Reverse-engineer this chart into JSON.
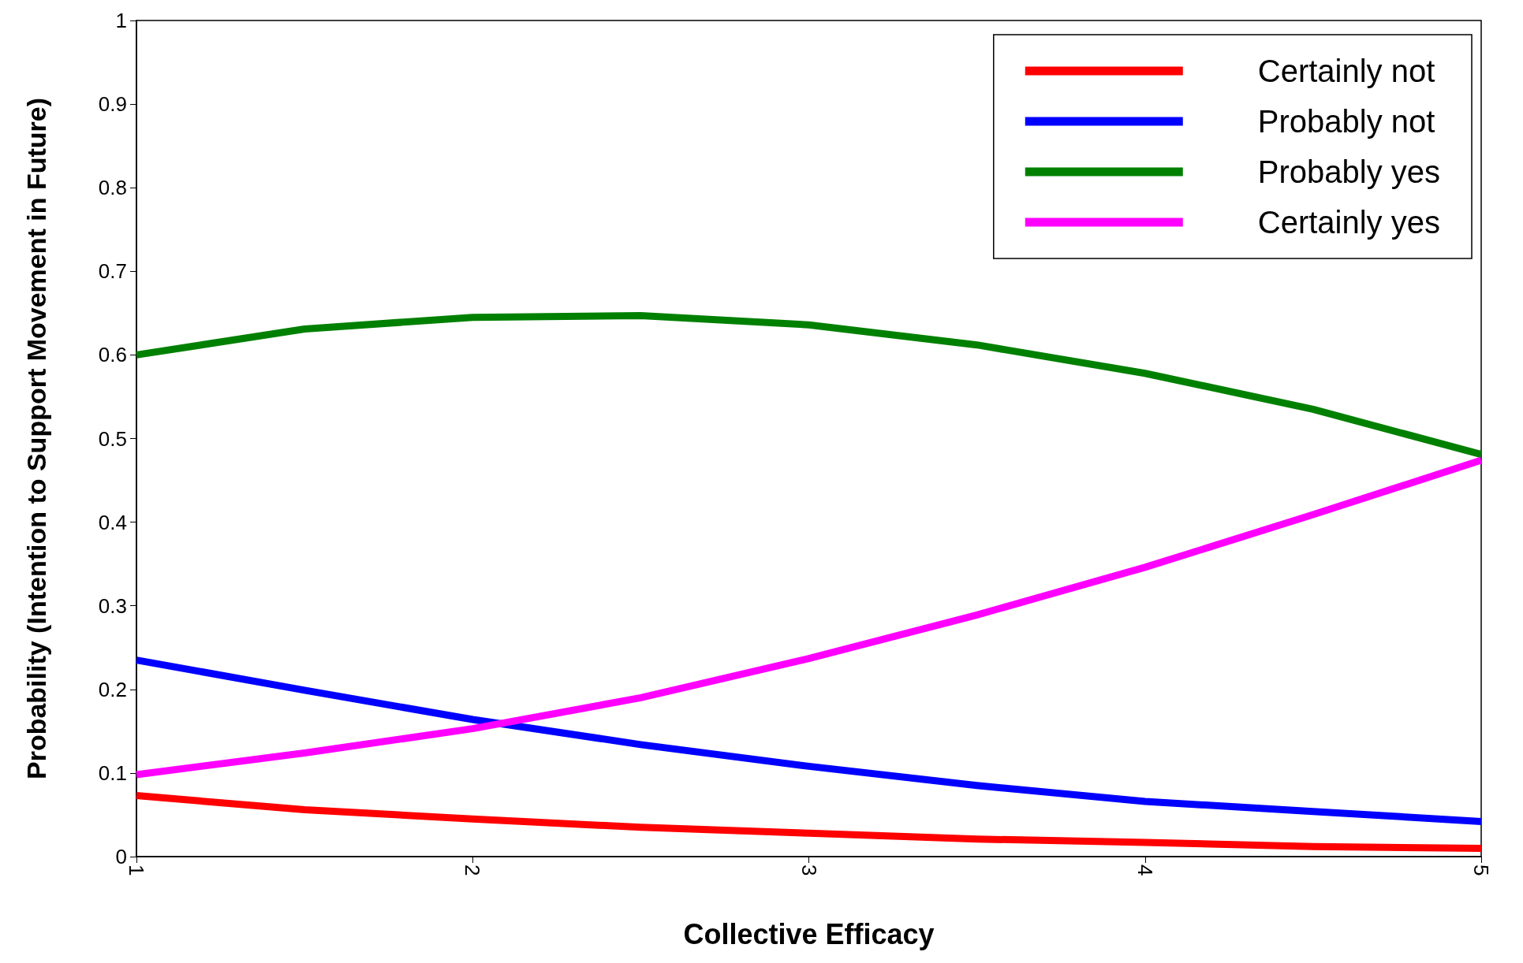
{
  "chart_data": {
    "type": "line",
    "xlabel": "Collective Efficacy",
    "ylabel": "Probability (Intention to Support Movement in Future)",
    "x": [
      1,
      1.5,
      2,
      2.5,
      3,
      3.5,
      4,
      4.5,
      5
    ],
    "xlim": [
      1,
      5
    ],
    "xticks": [
      1,
      2,
      3,
      4,
      5
    ],
    "ylim": [
      0,
      1
    ],
    "yticks": [
      0,
      0.1,
      0.2,
      0.3,
      0.4,
      0.5,
      0.6,
      0.7,
      0.8,
      0.9,
      1
    ],
    "grid": false,
    "legend": "top right",
    "marker": "none",
    "line_style": "solid",
    "series": [
      {
        "name": "Certainly not",
        "color": "#ff0000",
        "values": [
          0.073,
          0.056,
          0.045,
          0.035,
          0.028,
          0.021,
          0.017,
          0.012,
          0.01
        ]
      },
      {
        "name": "Probably not",
        "color": "#0000ff",
        "values": [
          0.235,
          0.199,
          0.164,
          0.134,
          0.108,
          0.085,
          0.066,
          0.054,
          0.042
        ]
      },
      {
        "name": "Probably yes",
        "color": "#008000",
        "values": [
          0.6,
          0.631,
          0.645,
          0.647,
          0.636,
          0.612,
          0.578,
          0.535,
          0.481
        ]
      },
      {
        "name": "Certainly yes",
        "color": "#ff00ff",
        "values": [
          0.098,
          0.124,
          0.153,
          0.19,
          0.237,
          0.289,
          0.346,
          0.409,
          0.474
        ]
      }
    ]
  }
}
